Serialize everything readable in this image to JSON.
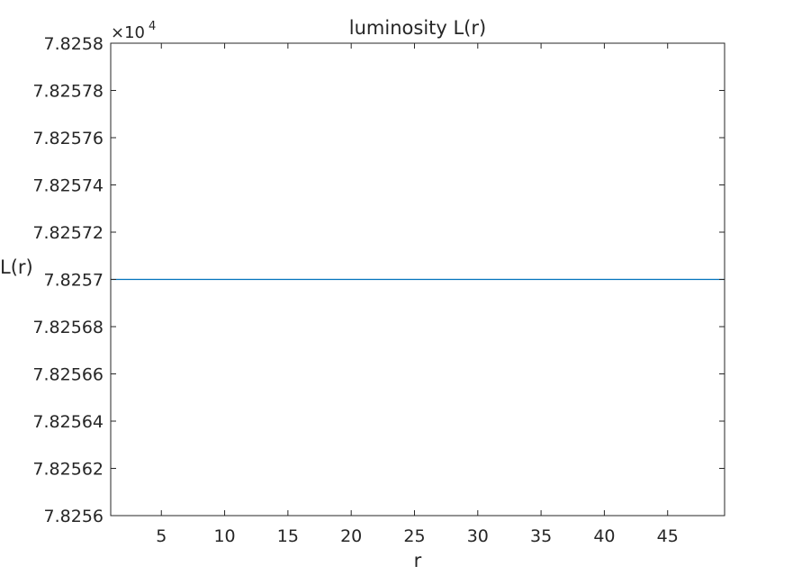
{
  "chart_data": {
    "type": "line",
    "title": "luminosity L(r)",
    "xlabel": "r",
    "ylabel": "L(r)",
    "y_exponent_prefix": "×10",
    "y_exponent_power": "4",
    "xlim": [
      1,
      49.5
    ],
    "ylim": [
      7.8256,
      7.8258
    ],
    "x_ticks": [
      5,
      10,
      15,
      20,
      25,
      30,
      35,
      40,
      45
    ],
    "x_tick_labels": [
      "5",
      "10",
      "15",
      "20",
      "25",
      "30",
      "35",
      "40",
      "45"
    ],
    "y_ticks": [
      7.8256,
      7.82562,
      7.82564,
      7.82566,
      7.82568,
      7.8257,
      7.82572,
      7.82574,
      7.82576,
      7.82578,
      7.8258
    ],
    "y_tick_labels": [
      "7.8256",
      "7.82562",
      "7.82564",
      "7.82566",
      "7.82568",
      "7.8257",
      "7.82572",
      "7.82574",
      "7.82576",
      "7.82578",
      "7.8258"
    ],
    "grid": false,
    "series": [
      {
        "color": "#0072bd",
        "x": [
          1,
          49.5
        ],
        "y": [
          7.8257,
          7.8257
        ]
      }
    ]
  }
}
